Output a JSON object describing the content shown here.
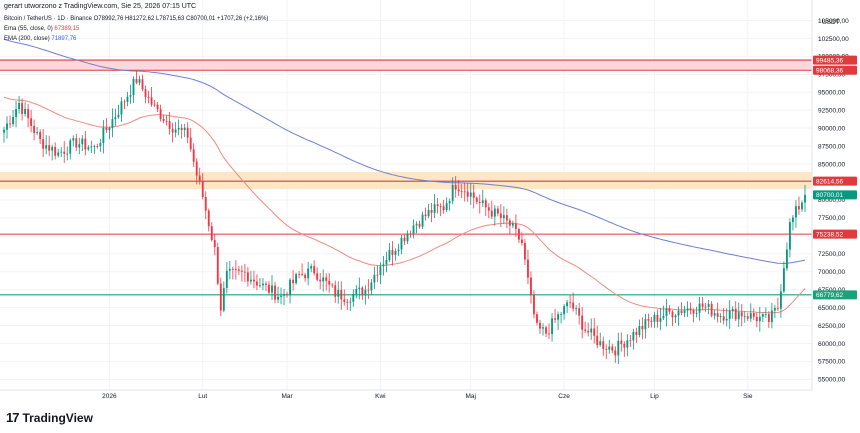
{
  "watermark": "gerart utworzono z TradingView.com, Sie 25, 2026 07:15 UTC",
  "legend": {
    "symbol_line": "Bitcoin / TetherUS · 1D · Binance  O78992,76  H81272,62  L78715,63  C80700,01  +1707,26 (+2,16%)",
    "ema_line": "Ema (55, close, 0)",
    "ema_value": "67389,15",
    "sma_line": "EMA (200, close)",
    "sma_value": "71897,76"
  },
  "currency": "USDT",
  "logo": {
    "mark": "17",
    "text": "TradingView",
    "icon": "tradingview-logo-icon"
  },
  "colors": {
    "up": "#089981",
    "down": "#f23645",
    "ema55": "#ef8a82",
    "ema200": "#6f7fd4",
    "red_line": "#e03a3e",
    "green_line": "#1aa37a",
    "pink_zone": "#fbd1d6",
    "orange_zone": "#fde3bd"
  },
  "chart_data": {
    "type": "candlestick",
    "x_tick_labels": [
      "2026",
      "Lut",
      "Mar",
      "Kwi",
      "Maj",
      "Cze",
      "Lip",
      "Sie"
    ],
    "y_tick_labels": [
      "105000,00",
      "102500,00",
      "100000,00",
      "97500,00",
      "95000,00",
      "92500,00",
      "90000,00",
      "87500,00",
      "85000,00",
      "82500,00",
      "80000,00",
      "77500,00",
      "75000,00",
      "72500,00",
      "70000,00",
      "67500,00",
      "65000,00",
      "62500,00",
      "60000,00",
      "57500,00",
      "55000,00"
    ],
    "ylim": [
      53800,
      107300
    ],
    "levels": [
      {
        "label": "99485,36",
        "value": 99485.36,
        "style": "red"
      },
      {
        "label": "98068,36",
        "value": 98068.36,
        "style": "red"
      },
      {
        "label": "82614,56",
        "value": 82614.56,
        "style": "red"
      },
      {
        "label": "75238,52",
        "value": 75238.52,
        "style": "red"
      },
      {
        "label": "66779,62",
        "value": 66779.62,
        "style": "green"
      }
    ],
    "last_price_label": "80700,01",
    "last_price": 80700.01,
    "zones": [
      {
        "from": 98068.36,
        "to": 99485.36,
        "style": "pink"
      },
      {
        "from": 81500,
        "to": 83900,
        "style": "orange"
      }
    ],
    "key_points": [
      {
        "d": 0,
        "p": 89800
      },
      {
        "d": 5,
        "p": 93500
      },
      {
        "d": 12,
        "p": 88200
      },
      {
        "d": 18,
        "p": 86500
      },
      {
        "d": 24,
        "p": 88000
      },
      {
        "d": 30,
        "p": 87200
      },
      {
        "d": 38,
        "p": 92500
      },
      {
        "d": 44,
        "p": 96800
      },
      {
        "d": 50,
        "p": 92800
      },
      {
        "d": 56,
        "p": 90200
      },
      {
        "d": 61,
        "p": 89000
      },
      {
        "d": 64,
        "p": 83500
      },
      {
        "d": 66,
        "p": 80500
      },
      {
        "d": 70,
        "p": 73000
      },
      {
        "d": 72,
        "p": 65000
      },
      {
        "d": 74,
        "p": 69500
      },
      {
        "d": 80,
        "p": 69800
      },
      {
        "d": 86,
        "p": 68000
      },
      {
        "d": 92,
        "p": 66500
      },
      {
        "d": 98,
        "p": 69500
      },
      {
        "d": 103,
        "p": 70200
      },
      {
        "d": 110,
        "p": 67000
      },
      {
        "d": 114,
        "p": 66500
      },
      {
        "d": 120,
        "p": 67500
      },
      {
        "d": 125,
        "p": 71000
      },
      {
        "d": 130,
        "p": 73500
      },
      {
        "d": 136,
        "p": 76500
      },
      {
        "d": 142,
        "p": 78500
      },
      {
        "d": 146,
        "p": 79000
      },
      {
        "d": 150,
        "p": 82200
      },
      {
        "d": 154,
        "p": 81300
      },
      {
        "d": 158,
        "p": 79500
      },
      {
        "d": 164,
        "p": 77800
      },
      {
        "d": 168,
        "p": 76500
      },
      {
        "d": 172,
        "p": 74000
      },
      {
        "d": 175,
        "p": 66000
      },
      {
        "d": 177,
        "p": 62000
      },
      {
        "d": 180,
        "p": 61500
      },
      {
        "d": 184,
        "p": 63800
      },
      {
        "d": 188,
        "p": 65700
      },
      {
        "d": 193,
        "p": 62000
      },
      {
        "d": 198,
        "p": 60000
      },
      {
        "d": 203,
        "p": 59200
      },
      {
        "d": 208,
        "p": 61000
      },
      {
        "d": 214,
        "p": 63000
      },
      {
        "d": 220,
        "p": 64200
      },
      {
        "d": 226,
        "p": 64800
      },
      {
        "d": 232,
        "p": 65200
      },
      {
        "d": 238,
        "p": 64000
      },
      {
        "d": 244,
        "p": 64300
      },
      {
        "d": 250,
        "p": 63600
      },
      {
        "d": 254,
        "p": 63200
      },
      {
        "d": 257,
        "p": 65000
      },
      {
        "d": 259,
        "p": 71000
      },
      {
        "d": 261,
        "p": 76500
      },
      {
        "d": 263,
        "p": 78300
      },
      {
        "d": 266,
        "p": 80700
      }
    ]
  }
}
